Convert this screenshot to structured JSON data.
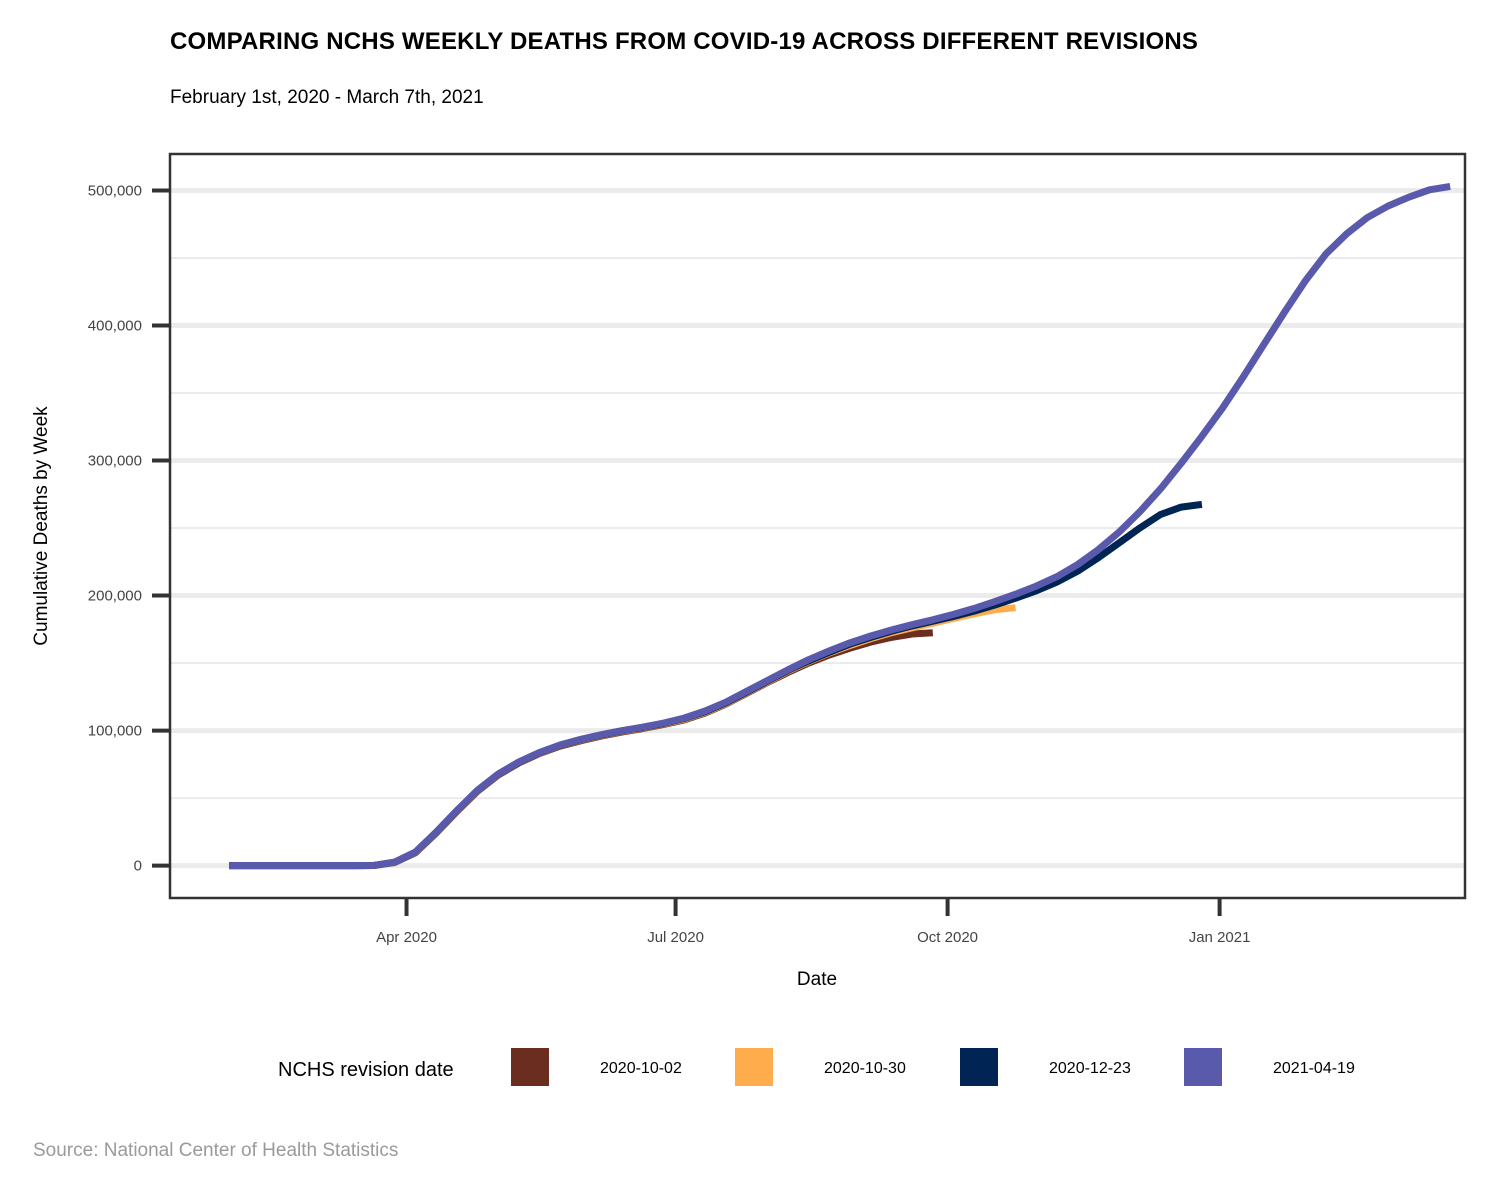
{
  "title": "COMPARING NCHS WEEKLY DEATHS FROM COVID-19 ACROSS DIFFERENT REVISIONS",
  "subtitle": "February 1st, 2020 - March 7th, 2021",
  "caption": "Source: National Center of Health Statistics",
  "chart_data": {
    "type": "line",
    "xlabel": "Date",
    "ylabel": "Cumulative Deaths by Week",
    "xlim": [
      "2020-01-12",
      "2021-03-25"
    ],
    "ylim": [
      -24000,
      527000
    ],
    "x_ticks": [
      {
        "date": "2020-04-01",
        "label": "Apr 2020"
      },
      {
        "date": "2020-07-01",
        "label": "Jul 2020"
      },
      {
        "date": "2020-10-01",
        "label": "Oct 2020"
      },
      {
        "date": "2021-01-01",
        "label": "Jan 2021"
      }
    ],
    "y_ticks": [
      {
        "value": 0,
        "label": "0"
      },
      {
        "value": 100000,
        "label": "100,000"
      },
      {
        "value": 200000,
        "label": "200,000"
      },
      {
        "value": 300000,
        "label": "300,000"
      },
      {
        "value": 400000,
        "label": "400,000"
      },
      {
        "value": 500000,
        "label": "500,000"
      }
    ],
    "y_minor_gridlines": [
      50000,
      150000,
      250000,
      350000,
      450000
    ],
    "grid": true,
    "legend": {
      "title": "NCHS revision date",
      "position": "bottom"
    },
    "series": [
      {
        "name": "2020-10-02",
        "color": "#6b2d20",
        "points": [
          [
            "2020-02-01",
            0
          ],
          [
            "2020-02-08",
            0
          ],
          [
            "2020-02-15",
            0
          ],
          [
            "2020-02-22",
            0
          ],
          [
            "2020-02-29",
            0
          ],
          [
            "2020-03-07",
            0
          ],
          [
            "2020-03-14",
            0
          ],
          [
            "2020-03-21",
            100
          ],
          [
            "2020-03-28",
            2300
          ],
          [
            "2020-04-04",
            9500
          ],
          [
            "2020-04-11",
            24000
          ],
          [
            "2020-04-18",
            40000
          ],
          [
            "2020-04-25",
            55000
          ],
          [
            "2020-05-02",
            67000
          ],
          [
            "2020-05-09",
            76000
          ],
          [
            "2020-05-16",
            83000
          ],
          [
            "2020-05-23",
            88500
          ],
          [
            "2020-05-30",
            92500
          ],
          [
            "2020-06-06",
            96000
          ],
          [
            "2020-06-13",
            99000
          ],
          [
            "2020-06-20",
            101500
          ],
          [
            "2020-06-27",
            104500
          ],
          [
            "2020-07-04",
            108000
          ],
          [
            "2020-07-11",
            113000
          ],
          [
            "2020-07-18",
            119500
          ],
          [
            "2020-07-25",
            127500
          ],
          [
            "2020-08-01",
            135500
          ],
          [
            "2020-08-08",
            143000
          ],
          [
            "2020-08-15",
            150000
          ],
          [
            "2020-08-22",
            156000
          ],
          [
            "2020-08-29",
            161000
          ],
          [
            "2020-09-05",
            165500
          ],
          [
            "2020-09-12",
            169000
          ],
          [
            "2020-09-19",
            171500
          ],
          [
            "2020-09-26",
            172500
          ]
        ]
      },
      {
        "name": "2020-10-30",
        "color": "#ffad4c",
        "points": [
          [
            "2020-02-01",
            0
          ],
          [
            "2020-02-08",
            0
          ],
          [
            "2020-02-15",
            0
          ],
          [
            "2020-02-22",
            0
          ],
          [
            "2020-02-29",
            0
          ],
          [
            "2020-03-07",
            0
          ],
          [
            "2020-03-14",
            0
          ],
          [
            "2020-03-21",
            100
          ],
          [
            "2020-03-28",
            2400
          ],
          [
            "2020-04-04",
            9700
          ],
          [
            "2020-04-11",
            24300
          ],
          [
            "2020-04-18",
            40300
          ],
          [
            "2020-04-25",
            55400
          ],
          [
            "2020-05-02",
            67400
          ],
          [
            "2020-05-09",
            76400
          ],
          [
            "2020-05-16",
            83400
          ],
          [
            "2020-05-23",
            89000
          ],
          [
            "2020-05-30",
            93000
          ],
          [
            "2020-06-06",
            96500
          ],
          [
            "2020-06-13",
            99500
          ],
          [
            "2020-06-20",
            102000
          ],
          [
            "2020-06-27",
            105000
          ],
          [
            "2020-07-04",
            108500
          ],
          [
            "2020-07-11",
            113500
          ],
          [
            "2020-07-18",
            120000
          ],
          [
            "2020-07-25",
            128000
          ],
          [
            "2020-08-01",
            136000
          ],
          [
            "2020-08-08",
            144000
          ],
          [
            "2020-08-15",
            151000
          ],
          [
            "2020-08-22",
            157500
          ],
          [
            "2020-08-29",
            163000
          ],
          [
            "2020-09-05",
            168000
          ],
          [
            "2020-09-12",
            172500
          ],
          [
            "2020-09-19",
            176000
          ],
          [
            "2020-09-26",
            179500
          ],
          [
            "2020-10-03",
            183000
          ],
          [
            "2020-10-10",
            186500
          ],
          [
            "2020-10-17",
            189500
          ],
          [
            "2020-10-24",
            191000
          ]
        ]
      },
      {
        "name": "2020-12-23",
        "color": "#002554",
        "points": [
          [
            "2020-02-01",
            0
          ],
          [
            "2020-02-08",
            0
          ],
          [
            "2020-02-15",
            0
          ],
          [
            "2020-02-22",
            0
          ],
          [
            "2020-02-29",
            0
          ],
          [
            "2020-03-07",
            0
          ],
          [
            "2020-03-14",
            0
          ],
          [
            "2020-03-21",
            100
          ],
          [
            "2020-03-28",
            2500
          ],
          [
            "2020-04-04",
            9900
          ],
          [
            "2020-04-11",
            24500
          ],
          [
            "2020-04-18",
            40500
          ],
          [
            "2020-04-25",
            55600
          ],
          [
            "2020-05-02",
            67600
          ],
          [
            "2020-05-09",
            76600
          ],
          [
            "2020-05-16",
            83600
          ],
          [
            "2020-05-23",
            89200
          ],
          [
            "2020-05-30",
            93300
          ],
          [
            "2020-06-06",
            96800
          ],
          [
            "2020-06-13",
            99800
          ],
          [
            "2020-06-20",
            102300
          ],
          [
            "2020-06-27",
            105300
          ],
          [
            "2020-07-04",
            109000
          ],
          [
            "2020-07-11",
            114000
          ],
          [
            "2020-07-18",
            120500
          ],
          [
            "2020-07-25",
            128500
          ],
          [
            "2020-08-01",
            136500
          ],
          [
            "2020-08-08",
            144500
          ],
          [
            "2020-08-15",
            151500
          ],
          [
            "2020-08-22",
            158000
          ],
          [
            "2020-08-29",
            164000
          ],
          [
            "2020-09-05",
            169000
          ],
          [
            "2020-09-12",
            173500
          ],
          [
            "2020-09-19",
            177500
          ],
          [
            "2020-09-26",
            181000
          ],
          [
            "2020-10-03",
            184500
          ],
          [
            "2020-10-10",
            188500
          ],
          [
            "2020-10-17",
            193000
          ],
          [
            "2020-10-24",
            198000
          ],
          [
            "2020-10-31",
            203500
          ],
          [
            "2020-11-07",
            210000
          ],
          [
            "2020-11-14",
            218000
          ],
          [
            "2020-11-21",
            228000
          ],
          [
            "2020-11-28",
            239000
          ],
          [
            "2020-12-05",
            250000
          ],
          [
            "2020-12-12",
            260000
          ],
          [
            "2020-12-19",
            265500
          ],
          [
            "2020-12-26",
            267500
          ]
        ]
      },
      {
        "name": "2021-04-19",
        "color": "#5a5aad",
        "points": [
          [
            "2020-02-01",
            0
          ],
          [
            "2020-02-08",
            0
          ],
          [
            "2020-02-15",
            0
          ],
          [
            "2020-02-22",
            0
          ],
          [
            "2020-02-29",
            0
          ],
          [
            "2020-03-07",
            0
          ],
          [
            "2020-03-14",
            0
          ],
          [
            "2020-03-21",
            100
          ],
          [
            "2020-03-28",
            2600
          ],
          [
            "2020-04-04",
            10000
          ],
          [
            "2020-04-11",
            24700
          ],
          [
            "2020-04-18",
            40700
          ],
          [
            "2020-04-25",
            55800
          ],
          [
            "2020-05-02",
            67800
          ],
          [
            "2020-05-09",
            76800
          ],
          [
            "2020-05-16",
            83800
          ],
          [
            "2020-05-23",
            89400
          ],
          [
            "2020-05-30",
            93500
          ],
          [
            "2020-06-06",
            97000
          ],
          [
            "2020-06-13",
            100000
          ],
          [
            "2020-06-20",
            102600
          ],
          [
            "2020-06-27",
            105600
          ],
          [
            "2020-07-04",
            109300
          ],
          [
            "2020-07-11",
            114500
          ],
          [
            "2020-07-18",
            121000
          ],
          [
            "2020-07-25",
            129000
          ],
          [
            "2020-08-01",
            137000
          ],
          [
            "2020-08-08",
            145000
          ],
          [
            "2020-08-15",
            152500
          ],
          [
            "2020-08-22",
            159000
          ],
          [
            "2020-08-29",
            165000
          ],
          [
            "2020-09-05",
            170000
          ],
          [
            "2020-09-12",
            174500
          ],
          [
            "2020-09-19",
            178500
          ],
          [
            "2020-09-26",
            182000
          ],
          [
            "2020-10-03",
            186000
          ],
          [
            "2020-10-10",
            190500
          ],
          [
            "2020-10-17",
            195500
          ],
          [
            "2020-10-24",
            201000
          ],
          [
            "2020-10-31",
            207000
          ],
          [
            "2020-11-07",
            214000
          ],
          [
            "2020-11-14",
            223000
          ],
          [
            "2020-11-21",
            234000
          ],
          [
            "2020-11-28",
            247000
          ],
          [
            "2020-12-05",
            262000
          ],
          [
            "2020-12-12",
            279000
          ],
          [
            "2020-12-19",
            298000
          ],
          [
            "2020-12-26",
            318000
          ],
          [
            "2021-01-02",
            339000
          ],
          [
            "2021-01-09",
            362000
          ],
          [
            "2021-01-16",
            386000
          ],
          [
            "2021-01-23",
            410000
          ],
          [
            "2021-01-30",
            433000
          ],
          [
            "2021-02-06",
            453000
          ],
          [
            "2021-02-13",
            468000
          ],
          [
            "2021-02-20",
            480000
          ],
          [
            "2021-02-27",
            488500
          ],
          [
            "2021-03-06",
            495000
          ],
          [
            "2021-03-13",
            500500
          ],
          [
            "2021-03-20",
            503000
          ]
        ]
      }
    ]
  }
}
